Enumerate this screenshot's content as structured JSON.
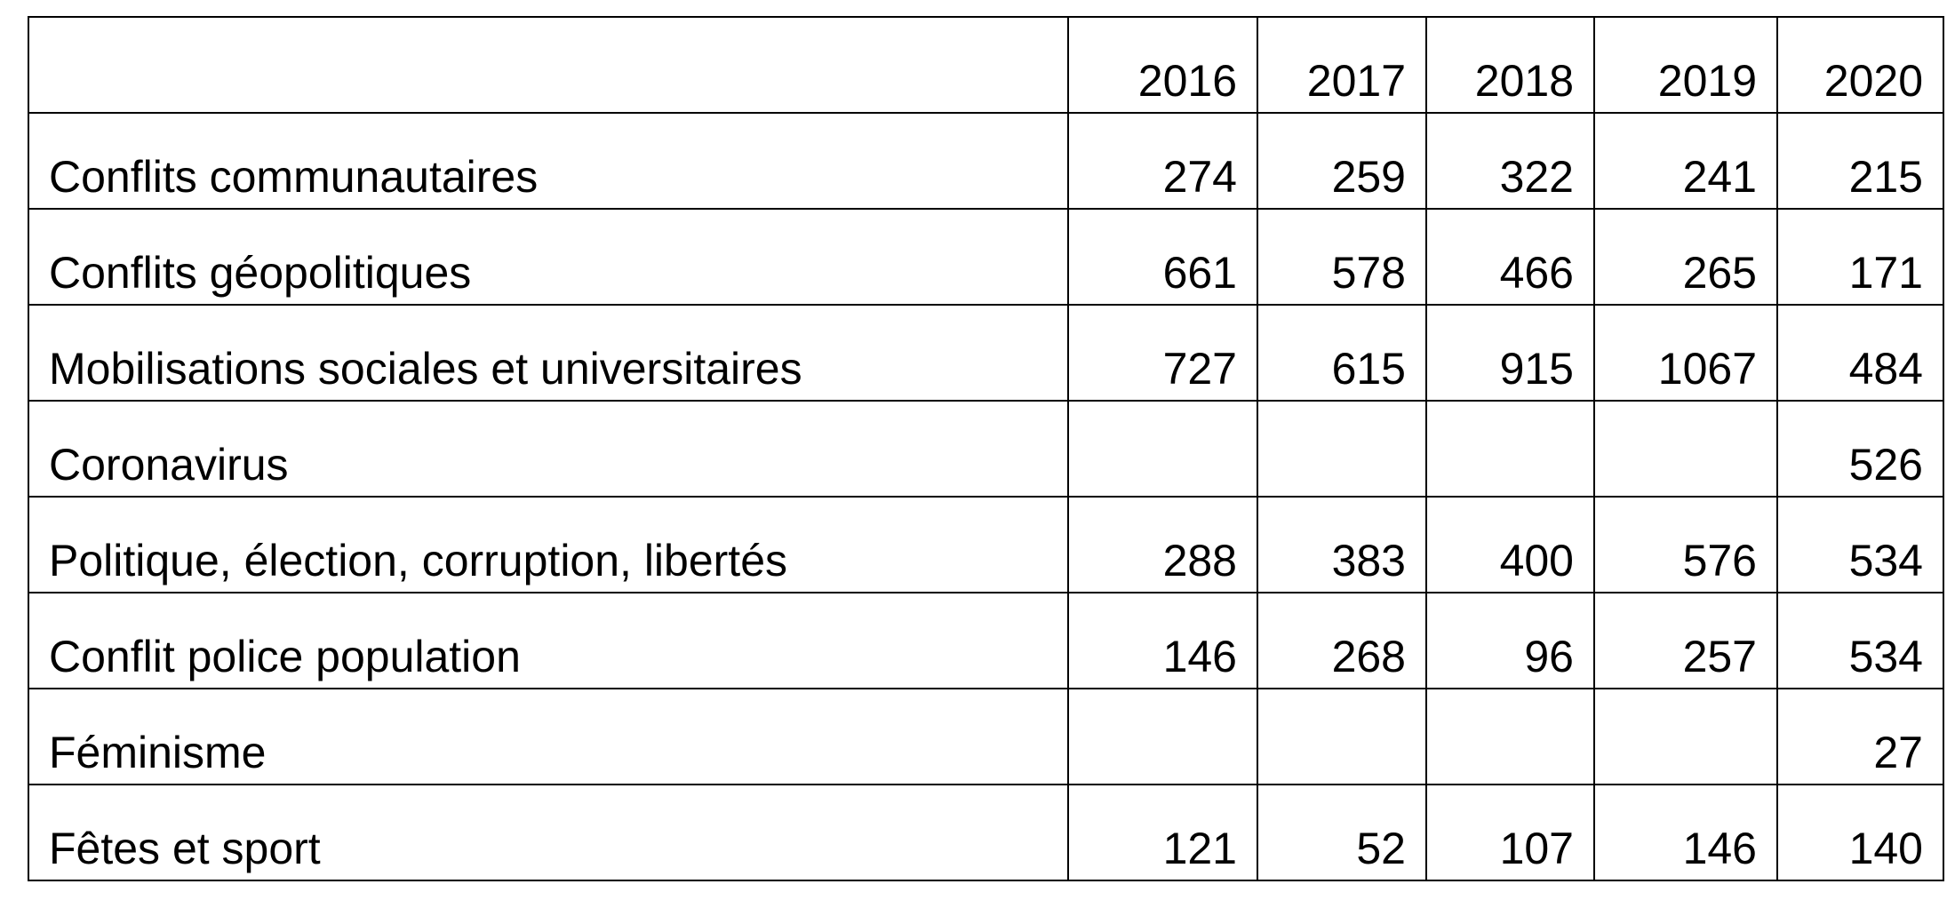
{
  "table": {
    "columns": [
      2016,
      2017,
      2018,
      2019,
      2020
    ],
    "rows": [
      {
        "label": "Conflits communautaires",
        "values": [
          274,
          259,
          322,
          241,
          215
        ]
      },
      {
        "label": "Conflits géopolitiques",
        "values": [
          661,
          578,
          466,
          265,
          171
        ]
      },
      {
        "label": "Mobilisations sociales et universitaires",
        "values": [
          727,
          615,
          915,
          1067,
          484
        ]
      },
      {
        "label": "Coronavirus",
        "values": [
          null,
          null,
          null,
          null,
          526
        ]
      },
      {
        "label": "Politique, élection, corruption, libertés",
        "values": [
          288,
          383,
          400,
          576,
          534
        ]
      },
      {
        "label": "Conflit police population",
        "values": [
          146,
          268,
          96,
          257,
          534
        ]
      },
      {
        "label": "Féminisme",
        "values": [
          null,
          null,
          null,
          null,
          27
        ]
      },
      {
        "label": "Fêtes et sport",
        "values": [
          121,
          52,
          107,
          146,
          140
        ]
      }
    ]
  }
}
